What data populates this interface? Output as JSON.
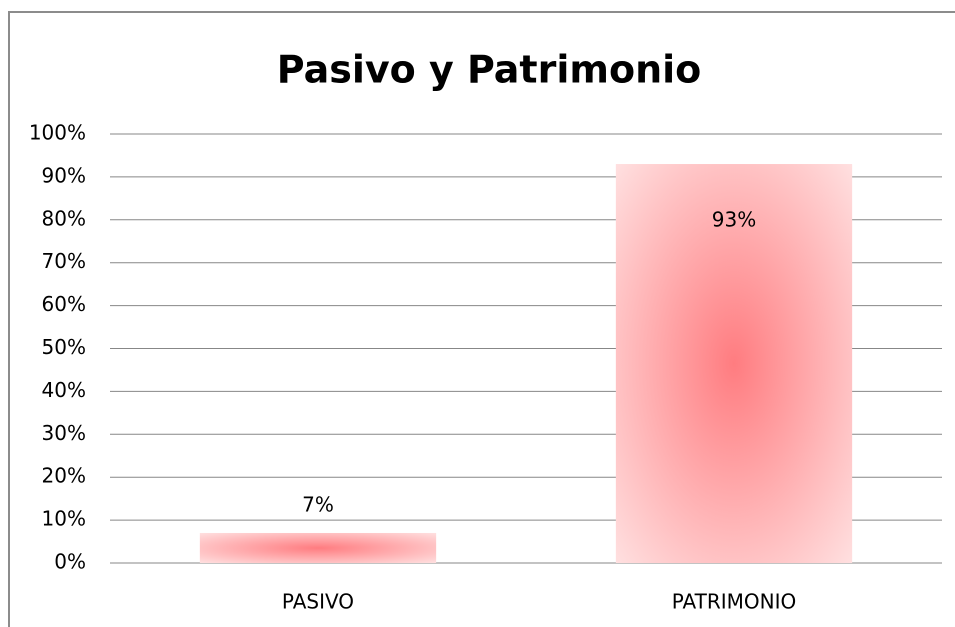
{
  "chart_data": {
    "type": "bar",
    "title": "Pasivo y Patrimonio",
    "categories": [
      "PASIVO",
      "PATRIMONIO"
    ],
    "values": [
      7,
      93
    ],
    "value_labels": [
      "7%",
      "93%"
    ],
    "color": "#ff7c80",
    "ylim": [
      0,
      100
    ],
    "yticks": [
      {
        "value": 0,
        "label": "0%"
      },
      {
        "value": 10,
        "label": "10%"
      },
      {
        "value": 20,
        "label": "20%"
      },
      {
        "value": 30,
        "label": "30%"
      },
      {
        "value": 40,
        "label": "40%"
      },
      {
        "value": 50,
        "label": "50%"
      },
      {
        "value": 60,
        "label": "60%"
      },
      {
        "value": 70,
        "label": "70%"
      },
      {
        "value": 80,
        "label": "80%"
      },
      {
        "value": 90,
        "label": "90%"
      },
      {
        "value": 100,
        "label": "100%"
      }
    ],
    "grid": true
  }
}
